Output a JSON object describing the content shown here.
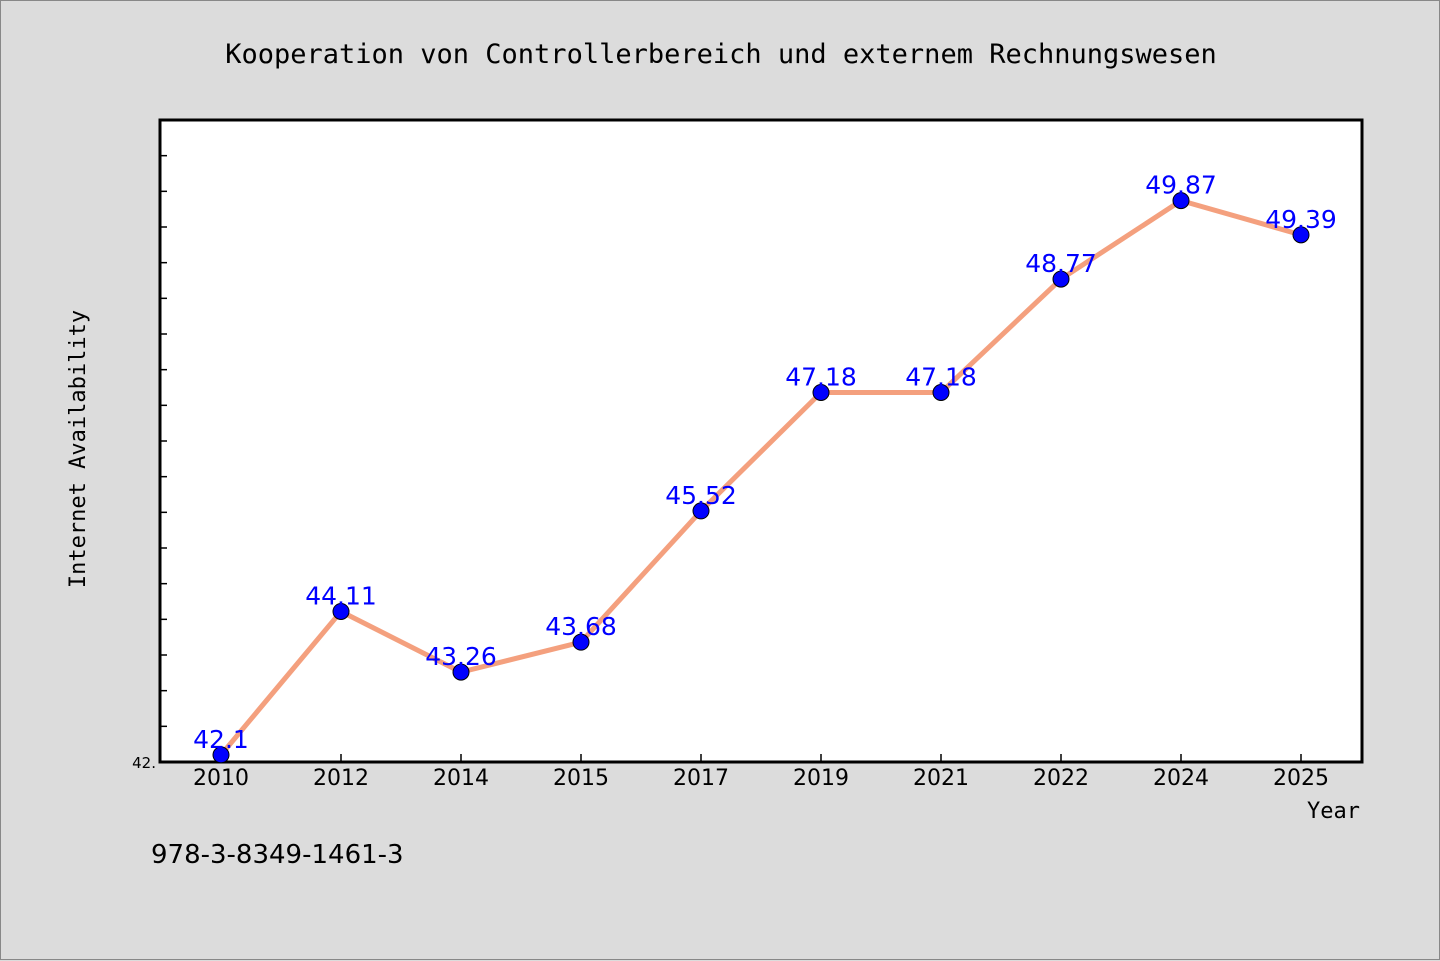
{
  "chart_data": {
    "type": "line",
    "title": "Kooperation von Controllerbereich und externem Rechnungswesen",
    "xlabel": "Year",
    "ylabel": "Internet Availability",
    "categories": [
      "2010",
      "2012",
      "2014",
      "2015",
      "2017",
      "2019",
      "2021",
      "2022",
      "2024",
      "2025"
    ],
    "series": [
      {
        "values": [
          42.1,
          44.11,
          43.26,
          43.68,
          45.52,
          47.18,
          47.18,
          48.77,
          49.87,
          49.39
        ],
        "labels": [
          "42.1",
          "44.11",
          "43.26",
          "43.68",
          "45.52",
          "47.18",
          "47.18",
          "48.77",
          "49.87",
          "49.39"
        ]
      }
    ],
    "y_tick_labels": [
      "42."
    ],
    "ylim": [
      42.0,
      51.0
    ],
    "grid": false,
    "legend": "none",
    "colors": {
      "line": "#f4a07e",
      "marker": "#0000ff",
      "label": "#0000ff",
      "background": "#dcdcdc",
      "plot_background": "#ffffff"
    }
  },
  "footnote": "978-3-8349-1461-3"
}
